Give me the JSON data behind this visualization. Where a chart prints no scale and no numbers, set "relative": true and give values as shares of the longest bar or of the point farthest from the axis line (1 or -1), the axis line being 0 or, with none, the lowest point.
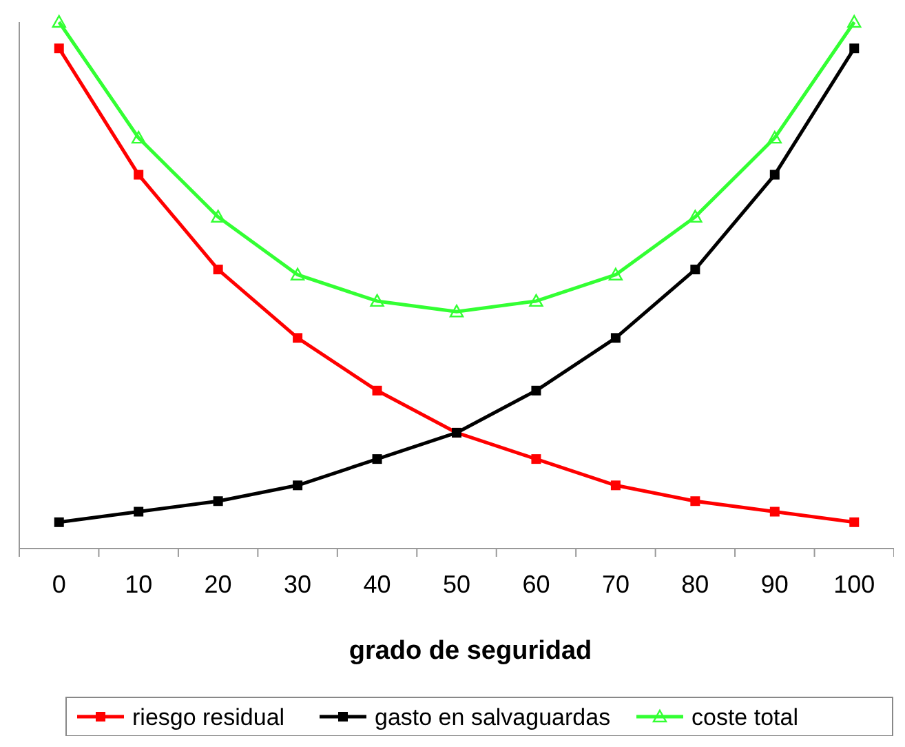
{
  "chart_data": {
    "type": "line",
    "relative": true,
    "xlabel": "grado de seguridad",
    "categories": [
      "0",
      "10",
      "20",
      "30",
      "40",
      "50",
      "60",
      "70",
      "80",
      "90",
      "100"
    ],
    "series": [
      {
        "name": "riesgo residual",
        "color": "#ff0000",
        "marker": "square",
        "values": [
          0.95,
          0.71,
          0.53,
          0.4,
          0.3,
          0.22,
          0.17,
          0.12,
          0.09,
          0.07,
          0.05
        ]
      },
      {
        "name": "gasto en salvaguardas",
        "color": "#000000",
        "marker": "square",
        "values": [
          0.05,
          0.07,
          0.09,
          0.12,
          0.17,
          0.22,
          0.3,
          0.4,
          0.53,
          0.71,
          0.95
        ]
      },
      {
        "name": "coste total",
        "color": "#33ff33",
        "marker": "triangle",
        "values": [
          1,
          0.78,
          0.63,
          0.52,
          0.47,
          0.45,
          0.47,
          0.52,
          0.63,
          0.78,
          1
        ]
      }
    ],
    "legend": "bottom",
    "line_style": "solid"
  }
}
